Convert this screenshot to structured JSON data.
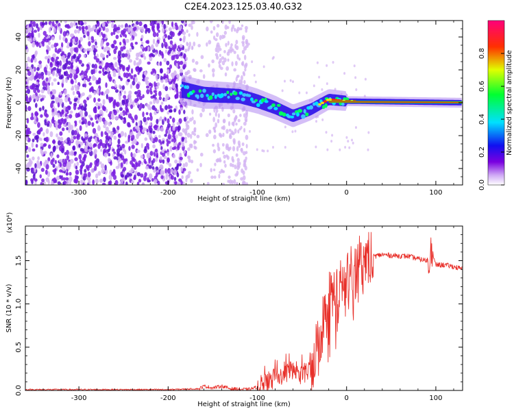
{
  "title": "C2E4.2023.125.03.40.G32",
  "colors": {
    "trace": "#e8302a",
    "faint_speckle": "#d3b4f2",
    "dense_speckle": "#7a1ee0",
    "dark_speckle": "#5a10d0"
  },
  "chart_data": [
    {
      "type": "heatmap",
      "title": "C2E4.2023.125.03.40.G32",
      "xlabel": "Height of straight line (km)",
      "ylabel": "Frequency (Hz)",
      "xlim": [
        -360,
        130
      ],
      "ylim": [
        -50,
        50
      ],
      "x_ticks": [
        -300,
        -200,
        -100,
        0,
        100
      ],
      "x_tick_labels": [
        "-300",
        "-200",
        "-100",
        "0",
        "100"
      ],
      "y_ticks": [
        -40,
        -20,
        0,
        20,
        40
      ],
      "y_tick_labels": [
        "-40",
        "-20",
        "0",
        "20",
        "40"
      ],
      "colorbar": {
        "label": "Normalized spectral amplitude",
        "range": [
          0.0,
          1.0
        ],
        "ticks": [
          0.0,
          0.2,
          0.4,
          0.6,
          0.8
        ],
        "tick_labels": [
          "0.0",
          "0.2",
          "0.4",
          "0.6",
          "0.8"
        ],
        "colormap": "rainbow (purple-blue-cyan-green-yellow-red-magenta)"
      },
      "features": {
        "noise_region_km": [
          -360,
          -180
        ],
        "sparse_noise_km": [
          -180,
          -110
        ],
        "signal_onset_km": -185,
        "carrier_frequency_hz": 0,
        "carrier_centerline": [
          [
            -185,
            8
          ],
          [
            -160,
            5
          ],
          [
            -120,
            4
          ],
          [
            -100,
            1
          ],
          [
            -80,
            -3
          ],
          [
            -60,
            -8
          ],
          [
            -40,
            -4
          ],
          [
            -20,
            2
          ],
          [
            0,
            1
          ],
          [
            130,
            0
          ]
        ]
      }
    },
    {
      "type": "line",
      "title": "",
      "xlabel": "Height of straight line (km)",
      "ylabel": "SNR (10 * v/v)",
      "scale_label": "(x10⁴)",
      "xlim": [
        -360,
        130
      ],
      "ylim": [
        0,
        1.9
      ],
      "x_ticks": [
        -300,
        -200,
        -100,
        0,
        100
      ],
      "x_tick_labels": [
        "-300",
        "-200",
        "-100",
        "0",
        "100"
      ],
      "y_ticks": [
        0.0,
        0.5,
        1.0,
        1.5
      ],
      "y_tick_labels": [
        "0.0",
        "0.5",
        "1.0",
        "1.5"
      ],
      "series": [
        {
          "name": "SNR",
          "x": [
            -360,
            -300,
            -200,
            -165,
            -160,
            -150,
            -140,
            -130,
            -110,
            -100,
            -90,
            -80,
            -70,
            -60,
            -50,
            -40,
            -30,
            -20,
            -10,
            0,
            10,
            20,
            30,
            40,
            50,
            70,
            80,
            90,
            95,
            100,
            110,
            120,
            130
          ],
          "y": [
            0.01,
            0.01,
            0.01,
            0.02,
            0.05,
            0.03,
            0.05,
            0.02,
            0.01,
            0.04,
            0.08,
            0.12,
            0.18,
            0.25,
            0.15,
            0.25,
            0.65,
            1.05,
            1.15,
            1.25,
            1.4,
            1.5,
            1.55,
            1.57,
            1.56,
            1.55,
            1.52,
            1.5,
            1.6,
            1.45,
            1.45,
            1.43,
            1.4
          ]
        }
      ]
    }
  ]
}
